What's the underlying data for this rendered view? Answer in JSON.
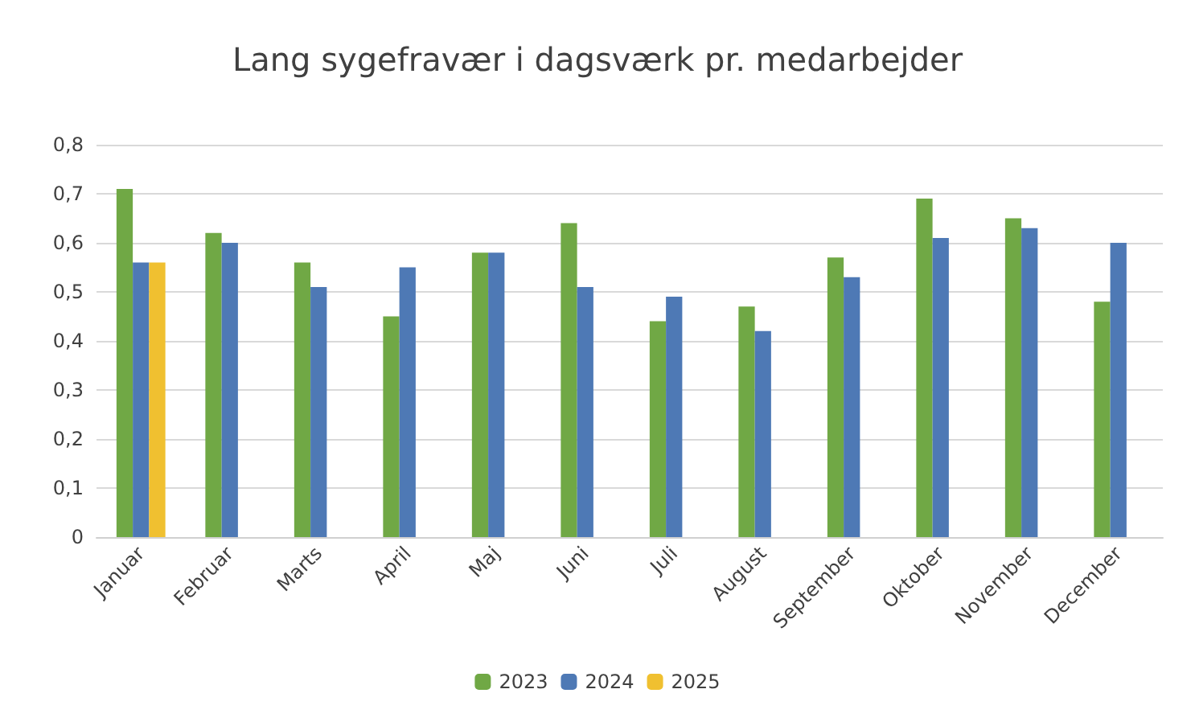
{
  "chart_data": {
    "type": "bar",
    "title": "Lang sygefravær i dagsværk pr. medarbejder",
    "categories": [
      "Januar",
      "Februar",
      "Marts",
      "April",
      "Maj",
      "Juni",
      "Juli",
      "August",
      "September",
      "Oktober",
      "November",
      "December"
    ],
    "series": [
      {
        "name": "2023",
        "color": "#70a845",
        "values": [
          0.71,
          0.62,
          0.56,
          0.45,
          0.58,
          0.64,
          0.44,
          0.47,
          0.57,
          0.69,
          0.65,
          0.48
        ]
      },
      {
        "name": "2024",
        "color": "#4e79b5",
        "values": [
          0.56,
          0.6,
          0.51,
          0.55,
          0.58,
          0.51,
          0.49,
          0.42,
          0.53,
          0.61,
          0.63,
          0.6
        ]
      },
      {
        "name": "2025",
        "color": "#f0c030",
        "values": [
          0.56,
          null,
          null,
          null,
          null,
          null,
          null,
          null,
          null,
          null,
          null,
          null
        ]
      }
    ],
    "ylim": [
      0,
      0.8
    ],
    "yticks": [
      0,
      {
        "value": 0.1,
        "label": "0,1"
      },
      {
        "value": 0.2,
        "label": "0,2"
      },
      {
        "value": 0.3,
        "label": "0,3"
      },
      {
        "value": 0.4,
        "label": "0,4"
      },
      {
        "value": 0.5,
        "label": "0,5"
      },
      {
        "value": 0.6,
        "label": "0,6"
      },
      {
        "value": 0.7,
        "label": "0,7"
      },
      {
        "value": 0.8,
        "label": "0,8"
      }
    ],
    "grid": "y",
    "legend": "bottom"
  }
}
